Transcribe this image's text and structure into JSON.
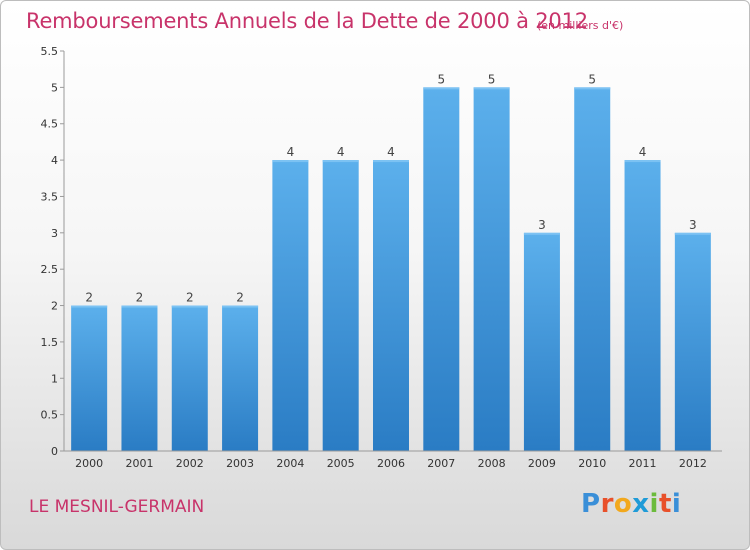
{
  "chart_data": {
    "type": "bar",
    "title": "Remboursements Annuels de la Dette de 2000 à 2012",
    "subtitle": "(en milliers d'€)",
    "categories": [
      "2000",
      "2001",
      "2002",
      "2003",
      "2004",
      "2005",
      "2006",
      "2007",
      "2008",
      "2009",
      "2010",
      "2011",
      "2012"
    ],
    "values": [
      2,
      2,
      2,
      2,
      4,
      4,
      4,
      5,
      5,
      3,
      5,
      4,
      3
    ],
    "data_labels": [
      "2",
      "2",
      "2",
      "2",
      "4",
      "4",
      "4",
      "5",
      "5",
      "3",
      "5",
      "4",
      "3"
    ],
    "ylim": [
      0,
      5.5
    ],
    "yticks": [
      "0",
      "0.5",
      "1",
      "1.5",
      "2",
      "2.5",
      "3",
      "3.5",
      "4",
      "4.5",
      "5",
      "5.5"
    ],
    "grid": false,
    "bar_color": "#4a9fe0"
  },
  "footer": {
    "commune": "LE MESNIL-GERMAIN",
    "logo_letters": [
      "P",
      "r",
      "o",
      "x",
      "i",
      "t",
      "i"
    ],
    "logo_colors": [
      "#3a8fd8",
      "#e8502a",
      "#f2a81d",
      "#1f9bd7",
      "#6cbb3c",
      "#e8502a",
      "#3a8fd8"
    ]
  }
}
